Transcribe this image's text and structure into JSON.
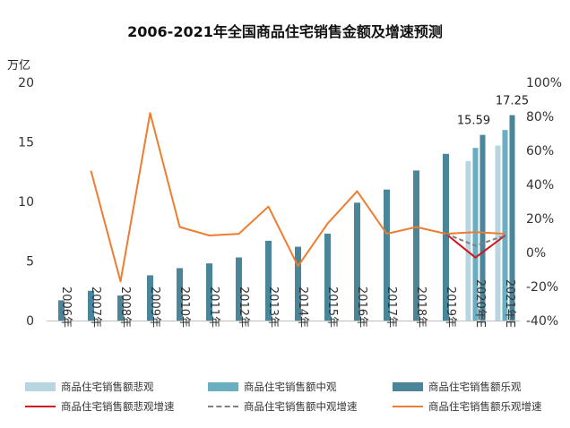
{
  "header": {
    "title": "2006-2021年全国商品住宅销售金额及增速预测",
    "unit_label": "万亿"
  },
  "legend": {
    "items": [
      {
        "label": "商品住宅销售额悲观",
        "kind": "bar",
        "color": "#b7d6e0"
      },
      {
        "label": "商品住宅销售额中观",
        "kind": "bar",
        "color": "#6aaec2"
      },
      {
        "label": "商品住宅销售额乐观",
        "kind": "bar",
        "color": "#4a8599"
      },
      {
        "label": "商品住宅销售额悲观增速",
        "kind": "line",
        "color": "#d0161e",
        "dash": false
      },
      {
        "label": "商品住宅销售额中观增速",
        "kind": "line",
        "color": "#7f7f7f",
        "dash": true
      },
      {
        "label": "商品住宅销售额乐观增速",
        "kind": "line",
        "color": "#ed7d31",
        "dash": false
      }
    ]
  },
  "chart_data": {
    "type": "bar",
    "categories": [
      "2006年",
      "2007年",
      "2008年",
      "2009年",
      "2010年",
      "2011年",
      "2012年",
      "2013年",
      "2014年",
      "2015年",
      "2016年",
      "2017年",
      "2018年",
      "2019年",
      "2020年E",
      "2021年E"
    ],
    "y_left": {
      "min": 0,
      "max": 20,
      "ticks": [
        "0",
        "5",
        "10",
        "15",
        "20"
      ]
    },
    "y_right": {
      "min": -40,
      "max": 100,
      "ticks": [
        "-40%",
        "-20%",
        "0%",
        "20%",
        "40%",
        "60%",
        "80%",
        "100%"
      ]
    },
    "historical_values": [
      1.7,
      2.5,
      2.1,
      3.8,
      4.4,
      4.8,
      5.3,
      6.7,
      6.2,
      7.3,
      9.9,
      11.0,
      12.6,
      14.0
    ],
    "scenario_bars": {
      "years": [
        "2020年E",
        "2021年E"
      ],
      "pessimistic": [
        13.4,
        14.7
      ],
      "neutral": [
        14.5,
        16.0
      ],
      "optimistic": [
        15.59,
        17.25
      ]
    },
    "data_labels": [
      "15.59",
      "17.25"
    ],
    "growth_optimistic": [
      48,
      -17,
      82,
      15,
      10,
      11,
      27,
      -8,
      17,
      36,
      11,
      15,
      11,
      12,
      11
    ],
    "growth_pessimistic": [
      11,
      -3,
      10
    ],
    "growth_neutral": [
      11,
      4,
      10
    ],
    "grid": false,
    "legend_position": "bottom"
  }
}
